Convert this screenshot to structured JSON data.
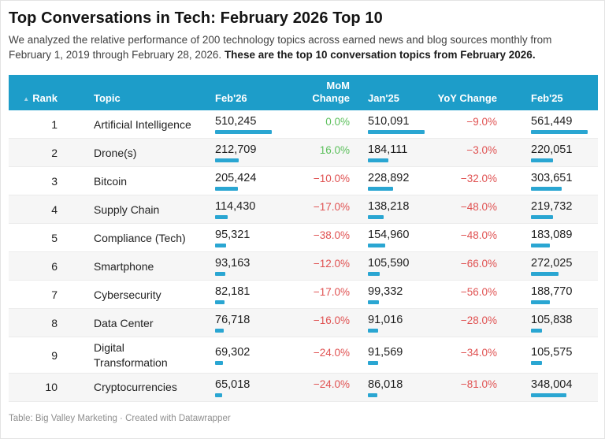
{
  "header": {
    "title": "Top Conversations in Tech: February 2026 Top 10",
    "description_normal": "We analyzed the relative performance of 200 technology topics across earned news and blog sources monthly from February 1, 2019 through February 28, 2026. ",
    "description_bold": "These are the top 10 conversation topics from February 2026."
  },
  "table": {
    "sort_icon": "▲"
  },
  "chart_data": {
    "type": "table",
    "title": "Top Conversations in Tech: February 2026 Top 10",
    "columns": [
      "Rank",
      "Topic",
      "Feb'26",
      "MoM Change",
      "Jan'25",
      "YoY Change",
      "Feb'25"
    ],
    "bar_columns_scaled_to_column_max": [
      "Feb'26",
      "Jan'25",
      "Feb'25"
    ],
    "rows": [
      {
        "rank": "1",
        "topic": "Artificial Intelligence",
        "feb26": {
          "text": "510,245",
          "value": 510245
        },
        "mom": {
          "text": "0.0%",
          "positive": true
        },
        "jan25": {
          "text": "510,091",
          "value": 510091
        },
        "yoy": {
          "text": "−9.0%",
          "positive": false
        },
        "feb25": {
          "text": "561,449",
          "value": 561449
        }
      },
      {
        "rank": "2",
        "topic": "Drone(s)",
        "feb26": {
          "text": "212,709",
          "value": 212709
        },
        "mom": {
          "text": "16.0%",
          "positive": true
        },
        "jan25": {
          "text": "184,111",
          "value": 184111
        },
        "yoy": {
          "text": "−3.0%",
          "positive": false
        },
        "feb25": {
          "text": "220,051",
          "value": 220051
        }
      },
      {
        "rank": "3",
        "topic": "Bitcoin",
        "feb26": {
          "text": "205,424",
          "value": 205424
        },
        "mom": {
          "text": "−10.0%",
          "positive": false
        },
        "jan25": {
          "text": "228,892",
          "value": 228892
        },
        "yoy": {
          "text": "−32.0%",
          "positive": false
        },
        "feb25": {
          "text": "303,651",
          "value": 303651
        }
      },
      {
        "rank": "4",
        "topic": "Supply Chain",
        "feb26": {
          "text": "114,430",
          "value": 114430
        },
        "mom": {
          "text": "−17.0%",
          "positive": false
        },
        "jan25": {
          "text": "138,218",
          "value": 138218
        },
        "yoy": {
          "text": "−48.0%",
          "positive": false
        },
        "feb25": {
          "text": "219,732",
          "value": 219732
        }
      },
      {
        "rank": "5",
        "topic": "Compliance (Tech)",
        "feb26": {
          "text": "95,321",
          "value": 95321
        },
        "mom": {
          "text": "−38.0%",
          "positive": false
        },
        "jan25": {
          "text": "154,960",
          "value": 154960
        },
        "yoy": {
          "text": "−48.0%",
          "positive": false
        },
        "feb25": {
          "text": "183,089",
          "value": 183089
        }
      },
      {
        "rank": "6",
        "topic": "Smartphone",
        "feb26": {
          "text": "93,163",
          "value": 93163
        },
        "mom": {
          "text": "−12.0%",
          "positive": false
        },
        "jan25": {
          "text": "105,590",
          "value": 105590
        },
        "yoy": {
          "text": "−66.0%",
          "positive": false
        },
        "feb25": {
          "text": "272,025",
          "value": 272025
        }
      },
      {
        "rank": "7",
        "topic": "Cybersecurity",
        "feb26": {
          "text": "82,181",
          "value": 82181
        },
        "mom": {
          "text": "−17.0%",
          "positive": false
        },
        "jan25": {
          "text": "99,332",
          "value": 99332
        },
        "yoy": {
          "text": "−56.0%",
          "positive": false
        },
        "feb25": {
          "text": "188,770",
          "value": 188770
        }
      },
      {
        "rank": "8",
        "topic": "Data Center",
        "feb26": {
          "text": "76,718",
          "value": 76718
        },
        "mom": {
          "text": "−16.0%",
          "positive": false
        },
        "jan25": {
          "text": "91,016",
          "value": 91016
        },
        "yoy": {
          "text": "−28.0%",
          "positive": false
        },
        "feb25": {
          "text": "105,838",
          "value": 105838
        }
      },
      {
        "rank": "9",
        "topic": "Digital Transformation",
        "feb26": {
          "text": "69,302",
          "value": 69302
        },
        "mom": {
          "text": "−24.0%",
          "positive": false
        },
        "jan25": {
          "text": "91,569",
          "value": 91569
        },
        "yoy": {
          "text": "−34.0%",
          "positive": false
        },
        "feb25": {
          "text": "105,575",
          "value": 105575
        }
      },
      {
        "rank": "10",
        "topic": "Cryptocurrencies",
        "feb26": {
          "text": "65,018",
          "value": 65018
        },
        "mom": {
          "text": "−24.0%",
          "positive": false
        },
        "jan25": {
          "text": "86,018",
          "value": 86018
        },
        "yoy": {
          "text": "−81.0%",
          "positive": false
        },
        "feb25": {
          "text": "348,004",
          "value": 348004
        }
      }
    ]
  },
  "footer": {
    "credit": "Table: Big Valley Marketing · Created with Datawrapper"
  },
  "colors": {
    "header_bg": "#1d9dc9",
    "bar": "#2aa6d2",
    "positive": "#5cc05c",
    "negative": "#e05252",
    "stripe": "#f6f6f6",
    "row_border": "#ebebeb",
    "sort_arrow": "#a9d6e8"
  }
}
